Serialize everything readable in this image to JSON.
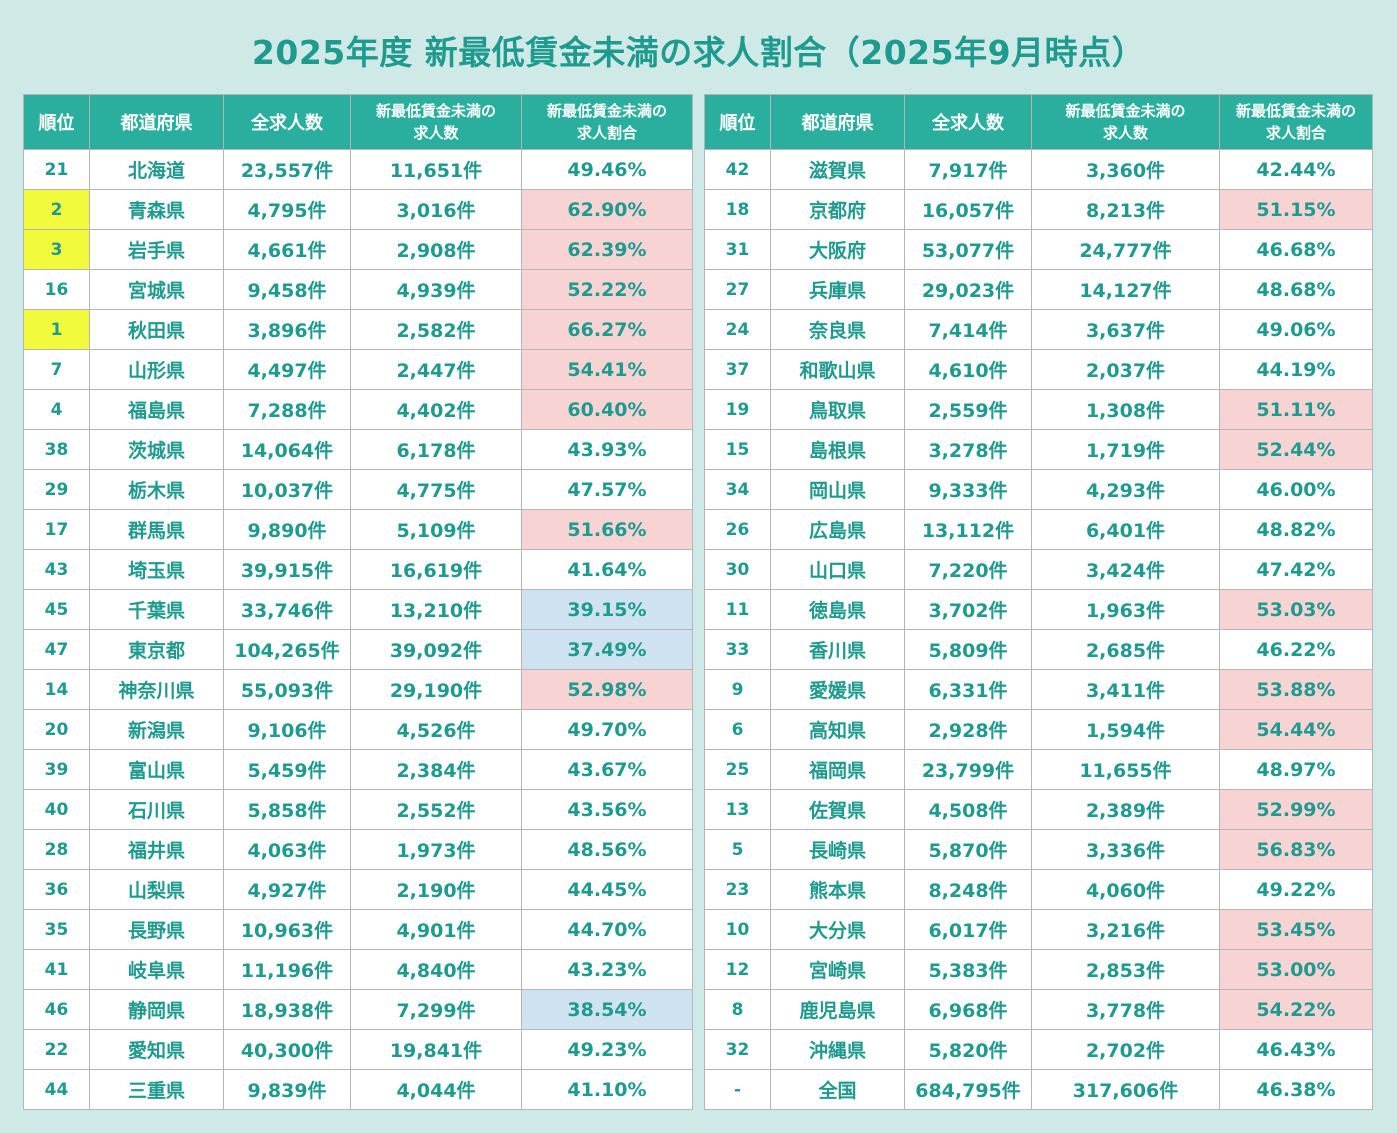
{
  "title": "2025年度 新最低賃金未満の求人割合（2025年9月時点）",
  "colors": {
    "background": "#cfeae6",
    "header": "#2aaf9e",
    "text": "#1e9a8e",
    "highlight_top3_rank": "#f2fa3c",
    "highlight_above_50pct": "#f7d3d3",
    "highlight_below_40pct": "#cfe2f1"
  },
  "chart_data": {
    "type": "table",
    "columns": [
      "順位",
      "都道府県",
      "全求人数",
      "新最低賃金未満の求人数",
      "新最低賃金未満の求人割合"
    ],
    "header_lines": [
      [
        "順位"
      ],
      [
        "都道府県"
      ],
      [
        "全求人数"
      ],
      [
        "新最低賃金未満の",
        "求人数"
      ],
      [
        "新最低賃金未満の",
        "求人割合"
      ]
    ],
    "tables": [
      {
        "rows": [
          {
            "rank": "21",
            "prefecture": "北海道",
            "total": "23,557件",
            "below": "11,651件",
            "ratio": "49.46%",
            "ratio_value": 49.46
          },
          {
            "rank": "2",
            "prefecture": "青森県",
            "total": "4,795件",
            "below": "3,016件",
            "ratio": "62.90%",
            "ratio_value": 62.9
          },
          {
            "rank": "3",
            "prefecture": "岩手県",
            "total": "4,661件",
            "below": "2,908件",
            "ratio": "62.39%",
            "ratio_value": 62.39
          },
          {
            "rank": "16",
            "prefecture": "宮城県",
            "total": "9,458件",
            "below": "4,939件",
            "ratio": "52.22%",
            "ratio_value": 52.22
          },
          {
            "rank": "1",
            "prefecture": "秋田県",
            "total": "3,896件",
            "below": "2,582件",
            "ratio": "66.27%",
            "ratio_value": 66.27
          },
          {
            "rank": "7",
            "prefecture": "山形県",
            "total": "4,497件",
            "below": "2,447件",
            "ratio": "54.41%",
            "ratio_value": 54.41
          },
          {
            "rank": "4",
            "prefecture": "福島県",
            "total": "7,288件",
            "below": "4,402件",
            "ratio": "60.40%",
            "ratio_value": 60.4
          },
          {
            "rank": "38",
            "prefecture": "茨城県",
            "total": "14,064件",
            "below": "6,178件",
            "ratio": "43.93%",
            "ratio_value": 43.93
          },
          {
            "rank": "29",
            "prefecture": "栃木県",
            "total": "10,037件",
            "below": "4,775件",
            "ratio": "47.57%",
            "ratio_value": 47.57
          },
          {
            "rank": "17",
            "prefecture": "群馬県",
            "total": "9,890件",
            "below": "5,109件",
            "ratio": "51.66%",
            "ratio_value": 51.66
          },
          {
            "rank": "43",
            "prefecture": "埼玉県",
            "total": "39,915件",
            "below": "16,619件",
            "ratio": "41.64%",
            "ratio_value": 41.64
          },
          {
            "rank": "45",
            "prefecture": "千葉県",
            "total": "33,746件",
            "below": "13,210件",
            "ratio": "39.15%",
            "ratio_value": 39.15
          },
          {
            "rank": "47",
            "prefecture": "東京都",
            "total": "104,265件",
            "below": "39,092件",
            "ratio": "37.49%",
            "ratio_value": 37.49
          },
          {
            "rank": "14",
            "prefecture": "神奈川県",
            "total": "55,093件",
            "below": "29,190件",
            "ratio": "52.98%",
            "ratio_value": 52.98
          },
          {
            "rank": "20",
            "prefecture": "新潟県",
            "total": "9,106件",
            "below": "4,526件",
            "ratio": "49.70%",
            "ratio_value": 49.7
          },
          {
            "rank": "39",
            "prefecture": "富山県",
            "total": "5,459件",
            "below": "2,384件",
            "ratio": "43.67%",
            "ratio_value": 43.67
          },
          {
            "rank": "40",
            "prefecture": "石川県",
            "total": "5,858件",
            "below": "2,552件",
            "ratio": "43.56%",
            "ratio_value": 43.56
          },
          {
            "rank": "28",
            "prefecture": "福井県",
            "total": "4,063件",
            "below": "1,973件",
            "ratio": "48.56%",
            "ratio_value": 48.56
          },
          {
            "rank": "36",
            "prefecture": "山梨県",
            "total": "4,927件",
            "below": "2,190件",
            "ratio": "44.45%",
            "ratio_value": 44.45
          },
          {
            "rank": "35",
            "prefecture": "長野県",
            "total": "10,963件",
            "below": "4,901件",
            "ratio": "44.70%",
            "ratio_value": 44.7
          },
          {
            "rank": "41",
            "prefecture": "岐阜県",
            "total": "11,196件",
            "below": "4,840件",
            "ratio": "43.23%",
            "ratio_value": 43.23
          },
          {
            "rank": "46",
            "prefecture": "静岡県",
            "total": "18,938件",
            "below": "7,299件",
            "ratio": "38.54%",
            "ratio_value": 38.54
          },
          {
            "rank": "22",
            "prefecture": "愛知県",
            "total": "40,300件",
            "below": "19,841件",
            "ratio": "49.23%",
            "ratio_value": 49.23
          },
          {
            "rank": "44",
            "prefecture": "三重県",
            "total": "9,839件",
            "below": "4,044件",
            "ratio": "41.10%",
            "ratio_value": 41.1
          }
        ]
      },
      {
        "rows": [
          {
            "rank": "42",
            "prefecture": "滋賀県",
            "total": "7,917件",
            "below": "3,360件",
            "ratio": "42.44%",
            "ratio_value": 42.44
          },
          {
            "rank": "18",
            "prefecture": "京都府",
            "total": "16,057件",
            "below": "8,213件",
            "ratio": "51.15%",
            "ratio_value": 51.15
          },
          {
            "rank": "31",
            "prefecture": "大阪府",
            "total": "53,077件",
            "below": "24,777件",
            "ratio": "46.68%",
            "ratio_value": 46.68
          },
          {
            "rank": "27",
            "prefecture": "兵庫県",
            "total": "29,023件",
            "below": "14,127件",
            "ratio": "48.68%",
            "ratio_value": 48.68
          },
          {
            "rank": "24",
            "prefecture": "奈良県",
            "total": "7,414件",
            "below": "3,637件",
            "ratio": "49.06%",
            "ratio_value": 49.06
          },
          {
            "rank": "37",
            "prefecture": "和歌山県",
            "total": "4,610件",
            "below": "2,037件",
            "ratio": "44.19%",
            "ratio_value": 44.19
          },
          {
            "rank": "19",
            "prefecture": "鳥取県",
            "total": "2,559件",
            "below": "1,308件",
            "ratio": "51.11%",
            "ratio_value": 51.11
          },
          {
            "rank": "15",
            "prefecture": "島根県",
            "total": "3,278件",
            "below": "1,719件",
            "ratio": "52.44%",
            "ratio_value": 52.44
          },
          {
            "rank": "34",
            "prefecture": "岡山県",
            "total": "9,333件",
            "below": "4,293件",
            "ratio": "46.00%",
            "ratio_value": 46.0
          },
          {
            "rank": "26",
            "prefecture": "広島県",
            "total": "13,112件",
            "below": "6,401件",
            "ratio": "48.82%",
            "ratio_value": 48.82
          },
          {
            "rank": "30",
            "prefecture": "山口県",
            "total": "7,220件",
            "below": "3,424件",
            "ratio": "47.42%",
            "ratio_value": 47.42
          },
          {
            "rank": "11",
            "prefecture": "徳島県",
            "total": "3,702件",
            "below": "1,963件",
            "ratio": "53.03%",
            "ratio_value": 53.03
          },
          {
            "rank": "33",
            "prefecture": "香川県",
            "total": "5,809件",
            "below": "2,685件",
            "ratio": "46.22%",
            "ratio_value": 46.22
          },
          {
            "rank": "9",
            "prefecture": "愛媛県",
            "total": "6,331件",
            "below": "3,411件",
            "ratio": "53.88%",
            "ratio_value": 53.88
          },
          {
            "rank": "6",
            "prefecture": "高知県",
            "total": "2,928件",
            "below": "1,594件",
            "ratio": "54.44%",
            "ratio_value": 54.44
          },
          {
            "rank": "25",
            "prefecture": "福岡県",
            "total": "23,799件",
            "below": "11,655件",
            "ratio": "48.97%",
            "ratio_value": 48.97
          },
          {
            "rank": "13",
            "prefecture": "佐賀県",
            "total": "4,508件",
            "below": "2,389件",
            "ratio": "52.99%",
            "ratio_value": 52.99
          },
          {
            "rank": "5",
            "prefecture": "長崎県",
            "total": "5,870件",
            "below": "3,336件",
            "ratio": "56.83%",
            "ratio_value": 56.83
          },
          {
            "rank": "23",
            "prefecture": "熊本県",
            "total": "8,248件",
            "below": "4,060件",
            "ratio": "49.22%",
            "ratio_value": 49.22
          },
          {
            "rank": "10",
            "prefecture": "大分県",
            "total": "6,017件",
            "below": "3,216件",
            "ratio": "53.45%",
            "ratio_value": 53.45
          },
          {
            "rank": "12",
            "prefecture": "宮崎県",
            "total": "5,383件",
            "below": "2,853件",
            "ratio": "53.00%",
            "ratio_value": 53.0
          },
          {
            "rank": "8",
            "prefecture": "鹿児島県",
            "total": "6,968件",
            "below": "3,778件",
            "ratio": "54.22%",
            "ratio_value": 54.22
          },
          {
            "rank": "32",
            "prefecture": "沖縄県",
            "total": "5,820件",
            "below": "2,702件",
            "ratio": "46.43%",
            "ratio_value": 46.43
          },
          {
            "rank": "-",
            "prefecture": "全国",
            "total": "684,795件",
            "below": "317,606件",
            "ratio": "46.38%",
            "ratio_value": 46.38
          }
        ]
      }
    ]
  }
}
